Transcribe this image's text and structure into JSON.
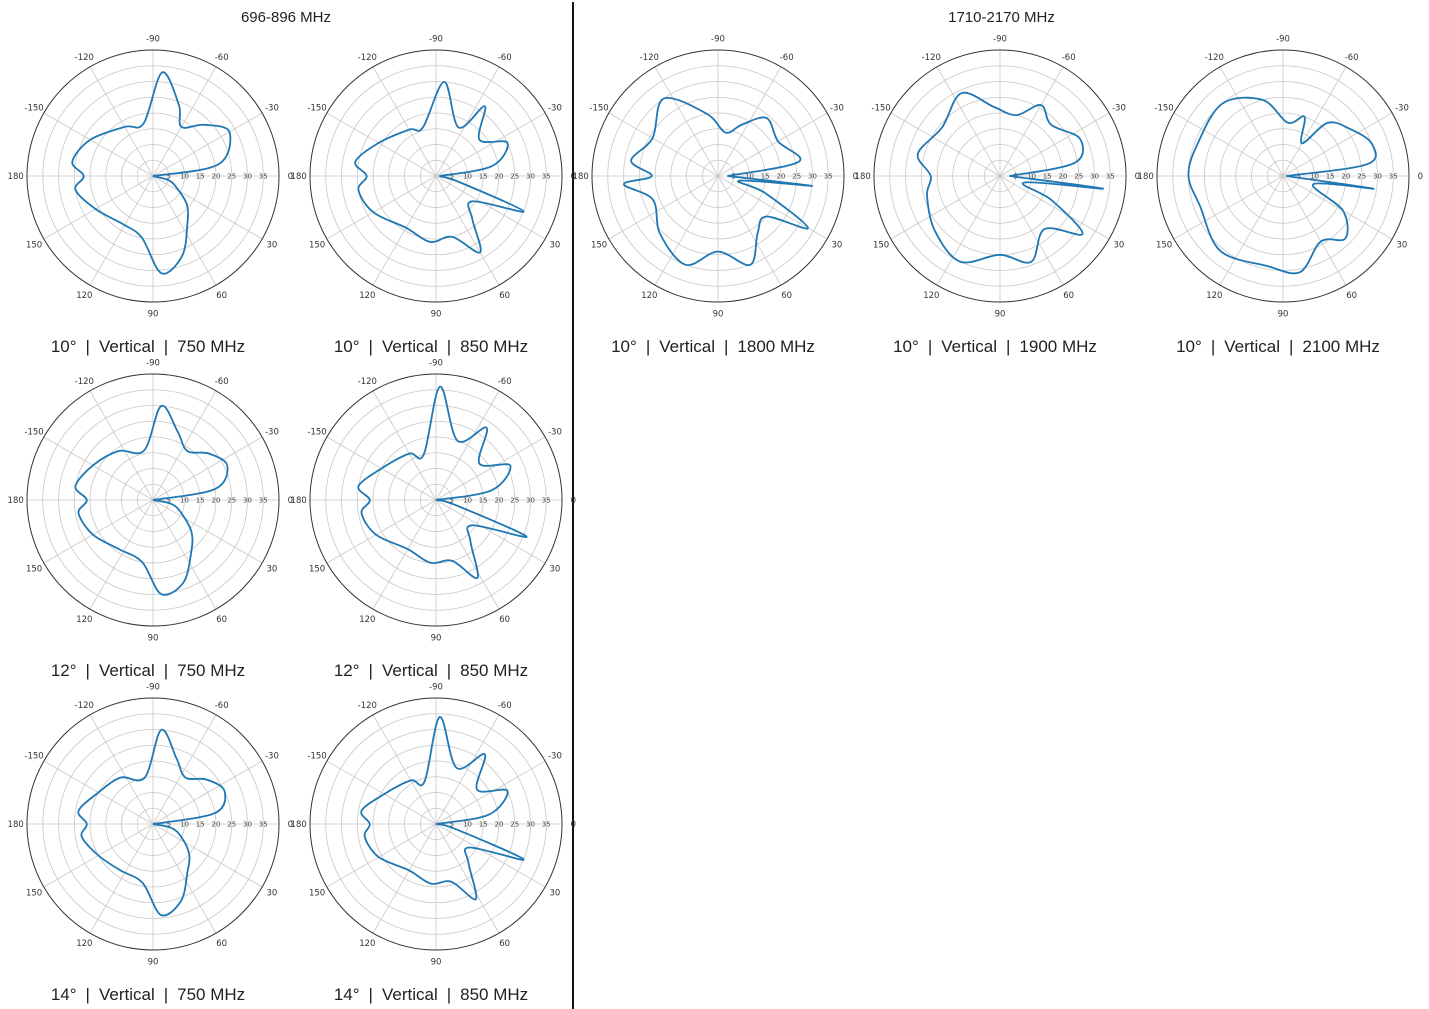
{
  "groups": [
    {
      "title": "696-896 MHz"
    },
    {
      "title": "1710-2170 MHz"
    }
  ],
  "separator": "|",
  "colors": {
    "trace": "#1f77b4",
    "grid": "#c8c8c8",
    "frame": "#333333"
  },
  "chart_data": [
    {
      "type": "polar-line",
      "tilt": "10°",
      "polarization": "Vertical",
      "frequency": "750 MHz",
      "angle_ticks": [
        "0",
        "30",
        "60",
        "90",
        "120",
        "150",
        "180",
        "-150",
        "-120",
        "-90",
        "-60",
        "-30"
      ],
      "radial_ticks": [
        "35",
        "30",
        "25",
        "20",
        "15",
        "10",
        "5"
      ],
      "rlim": [
        0,
        40
      ],
      "series": [
        {
          "values": [
            [
              0,
              0
            ],
            [
              15,
              5
            ],
            [
              25,
              8
            ],
            [
              40,
              14
            ],
            [
              55,
              19
            ],
            [
              70,
              27
            ],
            [
              85,
              31
            ],
            [
              100,
              20
            ],
            [
              120,
              18
            ],
            [
              150,
              21
            ],
            [
              170,
              25
            ],
            [
              180,
              22
            ],
            [
              -170,
              26
            ],
            [
              -150,
              23
            ],
            [
              -120,
              18
            ],
            [
              -100,
              17
            ],
            [
              -85,
              33
            ],
            [
              -70,
              24
            ],
            [
              -60,
              18
            ],
            [
              -45,
              23
            ],
            [
              -30,
              28
            ],
            [
              -10,
              21
            ],
            [
              0,
              0
            ]
          ]
        }
      ]
    },
    {
      "type": "polar-line",
      "tilt": "10°",
      "polarization": "Vertical",
      "frequency": "850 MHz",
      "angle_ticks": [
        "0",
        "30",
        "60",
        "90",
        "120",
        "150",
        "180",
        "-150",
        "-120",
        "-90",
        "-60",
        "-30"
      ],
      "radial_ticks": [
        "35",
        "30",
        "25",
        "20",
        "15",
        "10",
        "5"
      ],
      "rlim": [
        0,
        40
      ],
      "series": [
        {
          "values": [
            [
              0,
              1
            ],
            [
              15,
              8
            ],
            [
              22,
              30
            ],
            [
              35,
              14
            ],
            [
              50,
              18
            ],
            [
              60,
              28
            ],
            [
              75,
              20
            ],
            [
              95,
              21
            ],
            [
              120,
              19
            ],
            [
              150,
              23
            ],
            [
              170,
              25
            ],
            [
              180,
              22
            ],
            [
              -170,
              26
            ],
            [
              -150,
              21
            ],
            [
              -120,
              17
            ],
            [
              -105,
              16
            ],
            [
              -85,
              30
            ],
            [
              -65,
              17
            ],
            [
              -55,
              27
            ],
            [
              -40,
              18
            ],
            [
              -25,
              25
            ],
            [
              -10,
              18
            ],
            [
              0,
              1
            ]
          ]
        }
      ]
    },
    {
      "type": "polar-line",
      "tilt": "10°",
      "polarization": "Vertical",
      "frequency": "1800 MHz",
      "angle_ticks": [
        "0",
        "30",
        "60",
        "90",
        "120",
        "150",
        "180",
        "-150",
        "-120",
        "-90",
        "-60",
        "-30"
      ],
      "radial_ticks": [
        "35",
        "30",
        "25",
        "20",
        "15",
        "10",
        "5"
      ],
      "rlim": [
        0,
        40
      ],
      "series": [
        {
          "values": [
            [
              0,
              3
            ],
            [
              6,
              30
            ],
            [
              12,
              7
            ],
            [
              20,
              16
            ],
            [
              30,
              33
            ],
            [
              40,
              20
            ],
            [
              55,
              22
            ],
            [
              70,
              30
            ],
            [
              90,
              24
            ],
            [
              110,
              30
            ],
            [
              135,
              26
            ],
            [
              160,
              22
            ],
            [
              175,
              30
            ],
            [
              180,
              21
            ],
            [
              -170,
              28
            ],
            [
              -150,
              24
            ],
            [
              -125,
              30
            ],
            [
              -100,
              20
            ],
            [
              -80,
              14
            ],
            [
              -65,
              18
            ],
            [
              -50,
              24
            ],
            [
              -30,
              22
            ],
            [
              -10,
              26
            ],
            [
              0,
              3
            ]
          ]
        }
      ]
    },
    {
      "type": "polar-line",
      "tilt": "10°",
      "polarization": "Vertical",
      "frequency": "1900 MHz",
      "angle_ticks": [
        "0",
        "30",
        "60",
        "90",
        "120",
        "150",
        "180",
        "-150",
        "-120",
        "-90",
        "-60",
        "-30"
      ],
      "radial_ticks": [
        "35",
        "30",
        "25",
        "20",
        "15",
        "10",
        "5"
      ],
      "rlim": [
        0,
        40
      ],
      "series": [
        {
          "values": [
            [
              0,
              3
            ],
            [
              7,
              33
            ],
            [
              15,
              8
            ],
            [
              25,
              18
            ],
            [
              35,
              32
            ],
            [
              50,
              22
            ],
            [
              70,
              29
            ],
            [
              90,
              25
            ],
            [
              115,
              30
            ],
            [
              140,
              27
            ],
            [
              165,
              24
            ],
            [
              180,
              22
            ],
            [
              -165,
              27
            ],
            [
              -140,
              24
            ],
            [
              -115,
              29
            ],
            [
              -95,
              22
            ],
            [
              -75,
              20
            ],
            [
              -60,
              26
            ],
            [
              -45,
              23
            ],
            [
              -25,
              28
            ],
            [
              -10,
              24
            ],
            [
              0,
              3
            ]
          ]
        }
      ]
    },
    {
      "type": "polar-line",
      "tilt": "10°",
      "polarization": "Vertical",
      "frequency": "2100 MHz",
      "angle_ticks": [
        "0",
        "30",
        "60",
        "90",
        "120",
        "150",
        "180",
        "-150",
        "-120",
        "-90",
        "-60",
        "-30"
      ],
      "radial_ticks": [
        "35",
        "30",
        "25",
        "20",
        "15",
        "10",
        "5"
      ],
      "rlim": [
        0,
        40
      ],
      "series": [
        {
          "values": [
            [
              0,
              1
            ],
            [
              8,
              29
            ],
            [
              15,
              10
            ],
            [
              30,
              22
            ],
            [
              45,
              28
            ],
            [
              60,
              24
            ],
            [
              80,
              31
            ],
            [
              100,
              29
            ],
            [
              130,
              31
            ],
            [
              160,
              28
            ],
            [
              180,
              30
            ],
            [
              -160,
              29
            ],
            [
              -130,
              30
            ],
            [
              -105,
              25
            ],
            [
              -85,
              17
            ],
            [
              -70,
              20
            ],
            [
              -60,
              12
            ],
            [
              -50,
              22
            ],
            [
              -35,
              26
            ],
            [
              -20,
              30
            ],
            [
              -8,
              27
            ],
            [
              0,
              1
            ]
          ]
        }
      ]
    },
    {
      "type": "polar-line",
      "tilt": "12°",
      "polarization": "Vertical",
      "frequency": "750 MHz",
      "angle_ticks": [
        "0",
        "30",
        "60",
        "90",
        "120",
        "150",
        "180",
        "-150",
        "-120",
        "-90",
        "-60",
        "-30"
      ],
      "radial_ticks": [
        "35",
        "30",
        "25",
        "20",
        "15",
        "10",
        "5"
      ],
      "rlim": [
        0,
        40
      ],
      "series": [
        {
          "values": [
            [
              0,
              0
            ],
            [
              12,
              6
            ],
            [
              25,
              10
            ],
            [
              40,
              16
            ],
            [
              55,
              21
            ],
            [
              70,
              28
            ],
            [
              85,
              30
            ],
            [
              100,
              20
            ],
            [
              125,
              19
            ],
            [
              150,
              22
            ],
            [
              170,
              24
            ],
            [
              180,
              21
            ],
            [
              -170,
              25
            ],
            [
              -150,
              22
            ],
            [
              -125,
              19
            ],
            [
              -100,
              16
            ],
            [
              -85,
              30
            ],
            [
              -70,
              23
            ],
            [
              -55,
              19
            ],
            [
              -40,
              23
            ],
            [
              -25,
              26
            ],
            [
              -10,
              20
            ],
            [
              0,
              0
            ]
          ]
        }
      ]
    },
    {
      "type": "polar-line",
      "tilt": "12°",
      "polarization": "Vertical",
      "frequency": "850 MHz",
      "angle_ticks": [
        "0",
        "30",
        "60",
        "90",
        "120",
        "150",
        "180",
        "-150",
        "-120",
        "-90",
        "-60",
        "-30"
      ],
      "radial_ticks": [
        "35",
        "30",
        "25",
        "20",
        "15",
        "10",
        "5"
      ],
      "rlim": [
        0,
        40
      ],
      "series": [
        {
          "values": [
            [
              0,
              0
            ],
            [
              14,
              6
            ],
            [
              22,
              31
            ],
            [
              35,
              14
            ],
            [
              50,
              17
            ],
            [
              62,
              28
            ],
            [
              75,
              20
            ],
            [
              95,
              20
            ],
            [
              120,
              18
            ],
            [
              150,
              22
            ],
            [
              170,
              24
            ],
            [
              180,
              21
            ],
            [
              -170,
              25
            ],
            [
              -150,
              20
            ],
            [
              -120,
              17
            ],
            [
              -105,
              15
            ],
            [
              -88,
              36
            ],
            [
              -70,
              20
            ],
            [
              -55,
              28
            ],
            [
              -40,
              18
            ],
            [
              -25,
              26
            ],
            [
              -10,
              18
            ],
            [
              0,
              0
            ]
          ]
        }
      ]
    },
    {
      "type": "polar-line",
      "tilt": "14°",
      "polarization": "Vertical",
      "frequency": "750 MHz",
      "angle_ticks": [
        "0",
        "30",
        "60",
        "90",
        "120",
        "150",
        "180",
        "-150",
        "-120",
        "-90",
        "-60",
        "-30"
      ],
      "radial_ticks": [
        "35",
        "30",
        "25",
        "20",
        "15",
        "10",
        "5"
      ],
      "rlim": [
        0,
        40
      ],
      "series": [
        {
          "values": [
            [
              0,
              0
            ],
            [
              12,
              6
            ],
            [
              25,
              10
            ],
            [
              40,
              15
            ],
            [
              55,
              19
            ],
            [
              70,
              26
            ],
            [
              85,
              29
            ],
            [
              100,
              19
            ],
            [
              125,
              18
            ],
            [
              150,
              20
            ],
            [
              170,
              23
            ],
            [
              180,
              21
            ],
            [
              -170,
              24
            ],
            [
              -150,
              20
            ],
            [
              -125,
              18
            ],
            [
              -100,
              15
            ],
            [
              -85,
              30
            ],
            [
              -70,
              22
            ],
            [
              -55,
              18
            ],
            [
              -40,
              22
            ],
            [
              -25,
              25
            ],
            [
              -10,
              20
            ],
            [
              0,
              0
            ]
          ]
        }
      ]
    },
    {
      "type": "polar-line",
      "tilt": "14°",
      "polarization": "Vertical",
      "frequency": "850 MHz",
      "angle_ticks": [
        "0",
        "30",
        "60",
        "90",
        "120",
        "150",
        "180",
        "-150",
        "-120",
        "-90",
        "-60",
        "-30"
      ],
      "radial_ticks": [
        "35",
        "30",
        "25",
        "20",
        "15",
        "10",
        "5"
      ],
      "rlim": [
        0,
        40
      ],
      "series": [
        {
          "values": [
            [
              0,
              0
            ],
            [
              14,
              6
            ],
            [
              22,
              30
            ],
            [
              35,
              13
            ],
            [
              50,
              16
            ],
            [
              62,
              27
            ],
            [
              75,
              19
            ],
            [
              95,
              19
            ],
            [
              120,
              17
            ],
            [
              150,
              21
            ],
            [
              170,
              23
            ],
            [
              180,
              21
            ],
            [
              -170,
              24
            ],
            [
              -150,
              19
            ],
            [
              -120,
              16
            ],
            [
              -105,
              14
            ],
            [
              -88,
              34
            ],
            [
              -70,
              19
            ],
            [
              -55,
              27
            ],
            [
              -40,
              17
            ],
            [
              -25,
              25
            ],
            [
              -10,
              17
            ],
            [
              0,
              0
            ]
          ]
        }
      ]
    }
  ]
}
